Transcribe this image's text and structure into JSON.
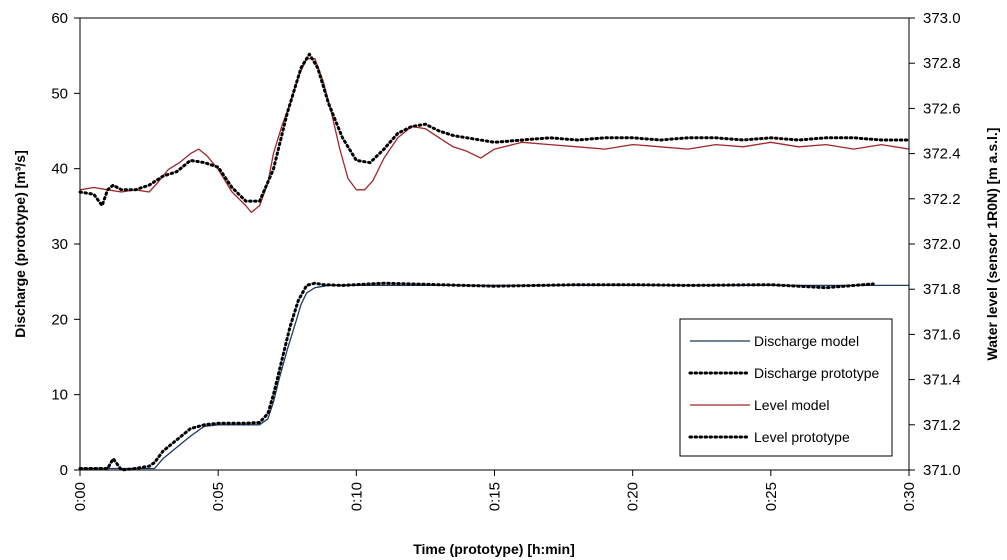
{
  "chart_data": {
    "type": "line",
    "xlabel": "Time (prototype)  [h:min]",
    "ylabel": "Discharge (prototype)  [m³/s]",
    "y2label": "Water level (sensor 1R0N)  [m a.s.l.]",
    "xlim": [
      0,
      30
    ],
    "ylim": [
      0,
      60
    ],
    "y2lim": [
      371.0,
      373.0
    ],
    "x_ticks": [
      0,
      5,
      10,
      15,
      20,
      25,
      30
    ],
    "x_tick_labels": [
      "0:00",
      "0:05",
      "0:10",
      "0:15",
      "0:20",
      "0:25",
      "0:30"
    ],
    "y_ticks": [
      0,
      10,
      20,
      30,
      40,
      50,
      60
    ],
    "y_tick_labels": [
      "0",
      "10",
      "20",
      "30",
      "40",
      "50",
      "60"
    ],
    "y2_ticks": [
      371.0,
      371.2,
      371.4,
      371.6,
      371.8,
      372.0,
      372.2,
      372.4,
      372.6,
      372.8,
      373.0
    ],
    "y2_tick_labels": [
      "371.0",
      "371.2",
      "371.4",
      "371.6",
      "371.8",
      "372.0",
      "372.2",
      "372.4",
      "372.6",
      "372.8",
      "373.0"
    ],
    "grid": false,
    "legend": "bottom-right",
    "series": [
      {
        "name": "Discharge model",
        "axis": "left",
        "color": "#1f3864",
        "style": "solid",
        "x": [
          0,
          1,
          2,
          2.7,
          3.0,
          3.5,
          4.0,
          4.5,
          5.0,
          5.5,
          6.0,
          6.5,
          6.8,
          7.0,
          7.2,
          7.5,
          7.8,
          8.0,
          8.2,
          8.5,
          9.0,
          10,
          12,
          15,
          20,
          25,
          30
        ],
        "y": [
          0.2,
          0.2,
          0.2,
          0.2,
          1.5,
          3.0,
          4.5,
          5.8,
          6.0,
          6.0,
          6.0,
          6.0,
          6.8,
          9.0,
          12.0,
          16.0,
          19.5,
          22.0,
          23.5,
          24.2,
          24.5,
          24.5,
          24.5,
          24.5,
          24.5,
          24.5,
          24.5
        ]
      },
      {
        "name": "Discharge prototype",
        "axis": "left",
        "color": "#000000",
        "style": "dotted",
        "x": [
          0,
          1.0,
          1.2,
          1.5,
          2.0,
          2.5,
          2.7,
          3.0,
          3.5,
          4.0,
          4.5,
          5.0,
          5.5,
          6.0,
          6.5,
          6.8,
          7.0,
          7.3,
          7.6,
          7.9,
          8.2,
          8.5,
          8.8,
          9.5,
          11,
          13,
          15,
          18,
          20,
          22,
          25,
          27,
          28.7
        ],
        "y": [
          0.2,
          0.2,
          1.5,
          0.0,
          0.2,
          0.5,
          1.0,
          2.5,
          4.0,
          5.5,
          6.0,
          6.2,
          6.2,
          6.2,
          6.3,
          7.5,
          10.0,
          14.5,
          19.0,
          22.5,
          24.5,
          24.8,
          24.6,
          24.5,
          24.8,
          24.6,
          24.4,
          24.6,
          24.6,
          24.5,
          24.6,
          24.2,
          24.7
        ]
      },
      {
        "name": "Level model",
        "axis": "right",
        "color": "#a0282a",
        "style": "solid",
        "x": [
          0,
          0.5,
          1.0,
          1.5,
          2.0,
          2.5,
          2.8,
          3.2,
          3.6,
          4.0,
          4.3,
          4.6,
          5.0,
          5.5,
          6.0,
          6.2,
          6.5,
          6.8,
          7.0,
          7.3,
          7.6,
          7.9,
          8.2,
          8.5,
          8.8,
          9.1,
          9.4,
          9.7,
          10.0,
          10.3,
          10.6,
          11.0,
          11.5,
          12.0,
          12.5,
          13.0,
          13.5,
          14.0,
          14.5,
          15.0,
          16,
          17,
          18,
          19,
          20,
          21,
          22,
          23,
          24,
          25,
          26,
          27,
          28,
          29,
          30
        ],
        "y": [
          372.24,
          372.25,
          372.24,
          372.23,
          372.24,
          372.23,
          372.27,
          372.33,
          372.36,
          372.4,
          372.42,
          372.39,
          372.33,
          372.23,
          372.17,
          372.14,
          372.17,
          372.27,
          372.4,
          372.52,
          372.62,
          372.74,
          372.82,
          372.82,
          372.72,
          372.58,
          372.42,
          372.29,
          372.24,
          372.24,
          372.28,
          372.38,
          372.47,
          372.52,
          372.51,
          372.47,
          372.43,
          372.41,
          372.38,
          372.42,
          372.45,
          372.44,
          372.43,
          372.42,
          372.44,
          372.43,
          372.42,
          372.44,
          372.43,
          372.45,
          372.43,
          372.44,
          372.42,
          372.44,
          372.42
        ]
      },
      {
        "name": "Level prototype",
        "axis": "right",
        "color": "#000000",
        "style": "dotted",
        "x": [
          0,
          0.5,
          0.8,
          1.0,
          1.2,
          1.5,
          2.0,
          2.5,
          3.0,
          3.5,
          4.0,
          4.5,
          5.0,
          5.5,
          6.0,
          6.5,
          7.0,
          7.5,
          8.0,
          8.3,
          8.6,
          9.0,
          9.5,
          10.0,
          10.5,
          11.0,
          11.5,
          12.0,
          12.5,
          13.0,
          13.5,
          14.0,
          15,
          16,
          17,
          18,
          19,
          20,
          21,
          22,
          23,
          24,
          25,
          26,
          27,
          28,
          29,
          30
        ],
        "y": [
          372.23,
          372.22,
          372.17,
          372.24,
          372.26,
          372.24,
          372.24,
          372.26,
          372.3,
          372.32,
          372.37,
          372.36,
          372.34,
          372.25,
          372.19,
          372.19,
          372.33,
          372.58,
          372.78,
          372.84,
          372.78,
          372.62,
          372.47,
          372.37,
          372.36,
          372.42,
          372.49,
          372.52,
          372.53,
          372.5,
          372.48,
          372.47,
          372.45,
          372.46,
          372.47,
          372.46,
          372.47,
          372.47,
          372.46,
          372.47,
          372.47,
          372.46,
          372.47,
          372.46,
          372.47,
          372.47,
          372.46,
          372.46
        ]
      }
    ]
  }
}
